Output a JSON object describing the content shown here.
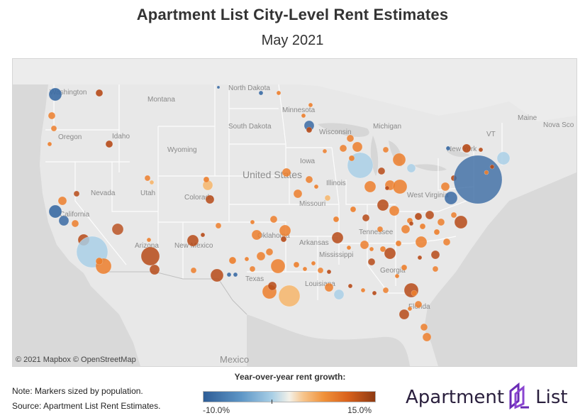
{
  "title": "Apartment List City-Level Rent Estimates",
  "subtitle": "May 2021",
  "map": {
    "attribution": "© 2021 Mapbox © OpenStreetMap",
    "labels": {
      "washington": "Washington",
      "oregon": "Oregon",
      "california": "California",
      "nevada": "Nevada",
      "idaho": "Idaho",
      "montana": "Montana",
      "wyoming": "Wyoming",
      "utah": "Utah",
      "colorado": "Colorado",
      "arizona": "Arizona",
      "new_mexico": "New Mexico",
      "north_dakota": "North Dakota",
      "south_dakota": "South Dakota",
      "minnesota": "Minnesota",
      "wisconsin": "Wisconsin",
      "michigan": "Michigan",
      "iowa": "Iowa",
      "illinois": "Illinois",
      "missouri": "Missouri",
      "oklahoma": "Oklahoma",
      "texas": "Texas",
      "arkansas": "Arkansas",
      "mississippi": "Mississippi",
      "louisiana": "Louisiana",
      "georgia": "Georgia",
      "florida": "Florida",
      "tennessee": "Tennessee",
      "west_virginia": "West Virginia",
      "new_york": "New York",
      "maine": "Maine",
      "vt": "VT",
      "nova_scotia": "Nova Sco",
      "united_states": "United States",
      "mexico": "Mexico"
    }
  },
  "legend": {
    "title": "Year-over-year rent growth:",
    "min_label": "-10.0%",
    "max_label": "15.0%",
    "min_value": -10.0,
    "max_value": 15.0
  },
  "notes": {
    "note": "Note: Markers sized by population.",
    "source": "Source: Apartment List Rent Estimates."
  },
  "logo": {
    "text_left": "Apartment",
    "text_right": "List"
  },
  "colors": {
    "cool_dark": "#3a6aa3",
    "cool_light": "#a9cfe6",
    "warm_light": "#f6b56a",
    "warm_mid": "#ec7e2c",
    "warm_dark": "#b64a18"
  }
}
